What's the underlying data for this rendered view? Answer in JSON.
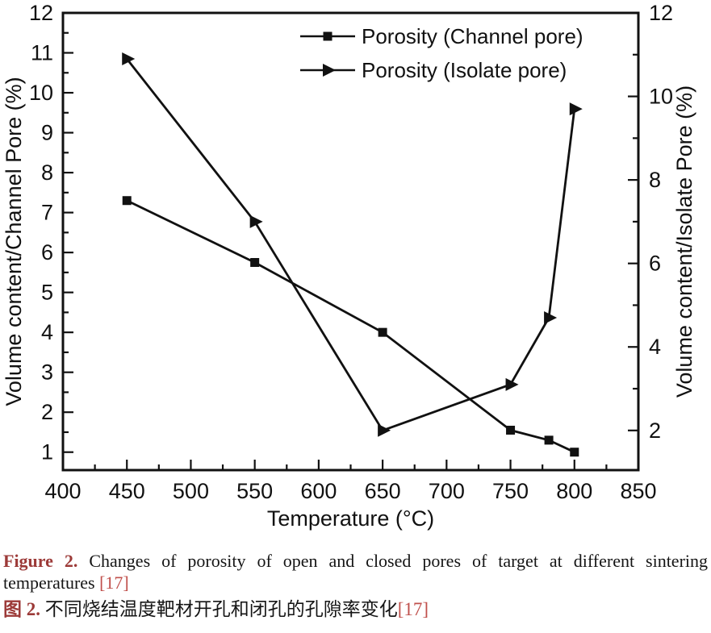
{
  "chart_data": {
    "type": "line",
    "xlabel": "Temperature (°C)",
    "ylabel_left": "Volume content/Channel Pore (%)",
    "ylabel_right": "Volume content/Isolate Pore (%)",
    "xlim": [
      400,
      850
    ],
    "x_major_ticks": [
      400,
      450,
      500,
      550,
      600,
      650,
      700,
      750,
      800,
      850
    ],
    "x_minor_step": 25,
    "ylim_left": [
      0.55,
      12
    ],
    "y_left_major_ticks": [
      1,
      2,
      3,
      4,
      5,
      6,
      7,
      8,
      9,
      10,
      11,
      12
    ],
    "y_left_minor_ticks": [
      1.5,
      2.5,
      3.5,
      4.5,
      5.5,
      6.5,
      7.5,
      8.5,
      9.5,
      10.5,
      11.5
    ],
    "ylim_right": [
      1.05,
      12
    ],
    "y_right_major_ticks": [
      2,
      4,
      6,
      8,
      10,
      12
    ],
    "y_right_minor_ticks": [
      3,
      5,
      7,
      9,
      11
    ],
    "grid": false,
    "legend_position": "top-center-inside",
    "line_color": "#111111",
    "series": [
      {
        "name": "Porosity (Channel pore)",
        "axis": "left",
        "marker": "square",
        "x": [
          450,
          550,
          650,
          750,
          780,
          800
        ],
        "y": [
          7.3,
          5.75,
          4.0,
          1.55,
          1.3,
          1.0
        ]
      },
      {
        "name": "Porosity (Isolate pore)",
        "axis": "right",
        "marker": "triangle-right",
        "x": [
          450,
          550,
          650,
          750,
          780,
          800
        ],
        "y": [
          10.9,
          7.0,
          2.0,
          3.1,
          4.7,
          9.7
        ]
      }
    ]
  },
  "caption": {
    "en_label": "Figure 2.",
    "en_text": "Changes of porosity of open and closed pores of target at different sintering temperatures",
    "en_ref": "[17]",
    "zh_label": "图 2.",
    "zh_text": "不同烧结温度靶材开孔和闭孔的孔隙率变化",
    "zh_ref": "[17]"
  },
  "colors": {
    "figure_label": "#9c3a38",
    "reference": "#c0504c",
    "line": "#111111",
    "background": "#ffffff"
  }
}
